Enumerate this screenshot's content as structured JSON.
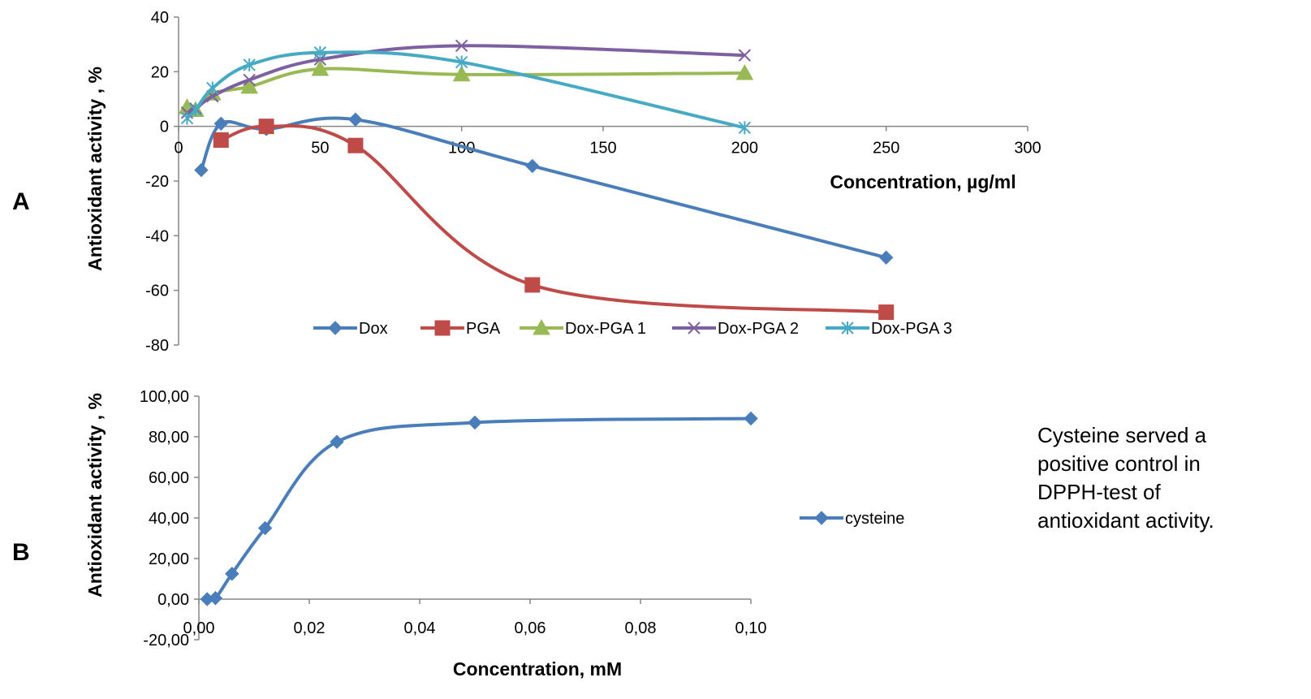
{
  "panels": [
    {
      "letter": "A"
    },
    {
      "letter": "B"
    }
  ],
  "note": {
    "lines": [
      "Cysteine  served a",
      "positive control in",
      "DPPH-test of",
      "antioxidant activity."
    ]
  },
  "chart_data": [
    {
      "type": "line",
      "panel": "A",
      "xlabel": "Concentration, µg/ml",
      "ylabel": "Antioxidant activity  , %",
      "xlim": [
        0,
        300
      ],
      "ylim": [
        -80,
        40
      ],
      "xticks": [
        0,
        50,
        100,
        150,
        200,
        250,
        300
      ],
      "xtick_labels": [
        "0",
        "50",
        "100",
        "150",
        "200",
        "250",
        "300"
      ],
      "yticks": [
        -80,
        -60,
        -40,
        -20,
        0,
        20,
        40
      ],
      "ytick_labels": [
        "-80",
        "-60",
        "-40",
        "-20",
        "0",
        "20",
        "40"
      ],
      "grid": false,
      "legend_position": "bottom",
      "series": [
        {
          "name": "Dox",
          "color": "#4a7ebb",
          "marker": "diamond",
          "x": [
            8,
            15,
            31,
            62.5,
            125,
            250
          ],
          "y": [
            -16,
            1,
            -1,
            2.5,
            -14.5,
            -48
          ]
        },
        {
          "name": "PGA",
          "color": "#be4b48",
          "marker": "square",
          "x": [
            15,
            31,
            62.5,
            125,
            250
          ],
          "y": [
            -5,
            0,
            -7,
            -58,
            -68
          ]
        },
        {
          "name": "Dox-PGA 1",
          "color": "#98b954",
          "marker": "triangle",
          "x": [
            3,
            6,
            12,
            25,
            50,
            100,
            200
          ],
          "y": [
            7,
            6,
            12,
            14.5,
            21,
            19,
            19.5
          ]
        },
        {
          "name": "Dox-PGA 2",
          "color": "#7d60a0",
          "marker": "x",
          "x": [
            3,
            6,
            12,
            25,
            50,
            100,
            200
          ],
          "y": [
            5,
            6.5,
            11,
            17,
            24.5,
            29.5,
            26
          ]
        },
        {
          "name": "Dox-PGA 3",
          "color": "#46aac5",
          "marker": "star",
          "x": [
            3,
            6,
            12,
            25,
            50,
            100,
            200
          ],
          "y": [
            3,
            6,
            14,
            22.5,
            27,
            23.5,
            -0.5
          ]
        }
      ]
    },
    {
      "type": "line",
      "panel": "B",
      "xlabel": "Concentration, mM",
      "ylabel": "Antioxidant activity  , %",
      "xlim": [
        0,
        0.1
      ],
      "ylim": [
        -20,
        100
      ],
      "xticks": [
        0,
        0.02,
        0.04,
        0.06,
        0.08,
        0.1
      ],
      "xtick_labels": [
        "0,00",
        "0,02",
        "0,04",
        "0,06",
        "0,08",
        "0,10"
      ],
      "yticks": [
        -20,
        0,
        20,
        40,
        60,
        80,
        100
      ],
      "ytick_labels": [
        "-20,00",
        "0,00",
        "20,00",
        "40,00",
        "60,00",
        "80,00",
        "100,00"
      ],
      "grid": false,
      "legend_position": "right",
      "series": [
        {
          "name": "cysteine",
          "color": "#4a7ebb",
          "marker": "diamond",
          "x": [
            0.0015,
            0.003,
            0.006,
            0.012,
            0.025,
            0.05,
            0.1
          ],
          "y": [
            0,
            0.5,
            12.5,
            35,
            77.5,
            87,
            89
          ]
        }
      ]
    }
  ]
}
